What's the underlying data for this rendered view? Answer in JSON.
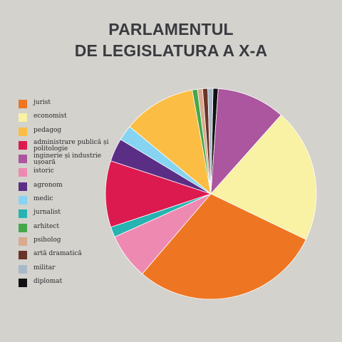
{
  "title_lines": [
    "PARLAMENTUL",
    "DE LEGISLATURA A X-A"
  ],
  "chart_data": {
    "type": "pie",
    "title": "PARLAMENTUL DE LEGISLATURA A X-A",
    "legend_placement": "left",
    "slices": [
      {
        "label": "jurist",
        "value": 29.5,
        "color": "#ee7623"
      },
      {
        "label": "economist",
        "value": 20.8,
        "color": "#f9f1a3"
      },
      {
        "label": "pedagog",
        "value": 11.3,
        "color": "#fbbd44"
      },
      {
        "label": "administrare publică și politologie",
        "value": 10.3,
        "color": "#dc1a4f"
      },
      {
        "label": "inginerie și industrie ușoară",
        "value": 10.6,
        "color": "#ab569f"
      },
      {
        "label": "istoric",
        "value": 7.1,
        "color": "#ee8ab2"
      },
      {
        "label": "agronom",
        "value": 3.6,
        "color": "#5b2e86"
      },
      {
        "label": "medic",
        "value": 2.4,
        "color": "#86d4f1"
      },
      {
        "label": "jurnalist",
        "value": 1.6,
        "color": "#26b3b1"
      },
      {
        "label": "arhitect",
        "value": 0.8,
        "color": "#46a74a"
      },
      {
        "label": "psiholog",
        "value": 0.8,
        "color": "#d9aa90"
      },
      {
        "label": "artă dramatică",
        "value": 0.8,
        "color": "#6b3428"
      },
      {
        "label": "militar",
        "value": 0.8,
        "color": "#a9b9c9"
      },
      {
        "label": "diplomat",
        "value": 0.8,
        "color": "#111111"
      }
    ]
  }
}
